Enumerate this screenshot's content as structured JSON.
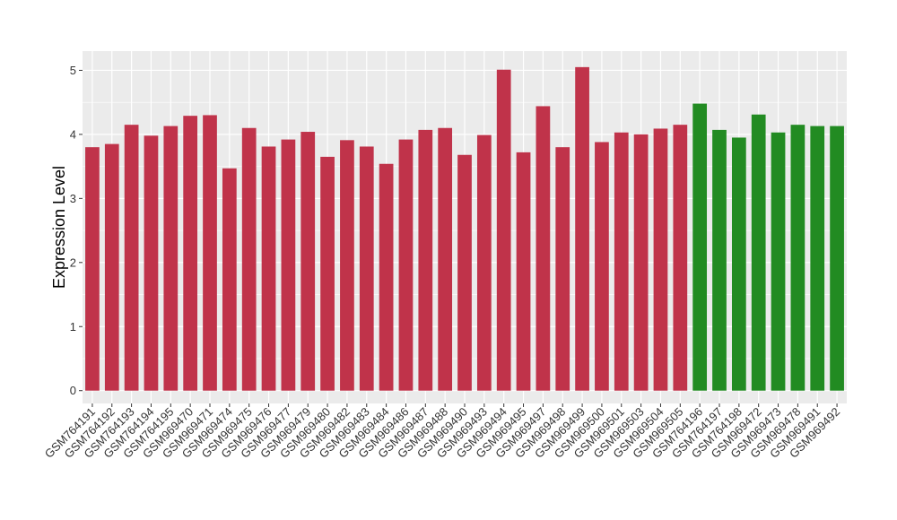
{
  "chart_data": {
    "type": "bar",
    "title": "",
    "xlabel": "",
    "ylabel": "Expression Level",
    "ylim": [
      -0.2,
      5.3
    ],
    "yticks": [
      0,
      1,
      2,
      3,
      4,
      5
    ],
    "grid": true,
    "colors": {
      "group1": "#C0334A",
      "group2": "#228B22",
      "panel_bg": "#EBEBEB",
      "grid": "#FFFFFF"
    },
    "categories": [
      "GSM764191",
      "GSM764192",
      "GSM764193",
      "GSM764194",
      "GSM764195",
      "GSM969470",
      "GSM969471",
      "GSM969474",
      "GSM969475",
      "GSM969476",
      "GSM969477",
      "GSM969479",
      "GSM969480",
      "GSM969482",
      "GSM969483",
      "GSM969484",
      "GSM969486",
      "GSM969487",
      "GSM969488",
      "GSM969490",
      "GSM969493",
      "GSM969494",
      "GSM969495",
      "GSM969497",
      "GSM969498",
      "GSM969499",
      "GSM969500",
      "GSM969501",
      "GSM969503",
      "GSM969504",
      "GSM969505",
      "GSM764196",
      "GSM764197",
      "GSM764198",
      "GSM969472",
      "GSM969473",
      "GSM969478",
      "GSM969491",
      "GSM969492"
    ],
    "values": [
      3.8,
      3.85,
      4.15,
      3.98,
      4.13,
      4.29,
      4.3,
      3.47,
      4.1,
      3.81,
      3.92,
      4.04,
      3.65,
      3.91,
      3.81,
      3.54,
      3.92,
      4.07,
      4.1,
      3.68,
      3.99,
      5.01,
      3.72,
      4.44,
      3.8,
      5.05,
      3.88,
      4.03,
      4.0,
      4.09,
      4.15,
      4.48,
      4.07,
      3.95,
      4.31,
      4.03,
      4.15,
      4.13,
      4.13
    ],
    "groups": [
      "group1",
      "group1",
      "group1",
      "group1",
      "group1",
      "group1",
      "group1",
      "group1",
      "group1",
      "group1",
      "group1",
      "group1",
      "group1",
      "group1",
      "group1",
      "group1",
      "group1",
      "group1",
      "group1",
      "group1",
      "group1",
      "group1",
      "group1",
      "group1",
      "group1",
      "group1",
      "group1",
      "group1",
      "group1",
      "group1",
      "group1",
      "group2",
      "group2",
      "group2",
      "group2",
      "group2",
      "group2",
      "group2",
      "group2"
    ]
  }
}
